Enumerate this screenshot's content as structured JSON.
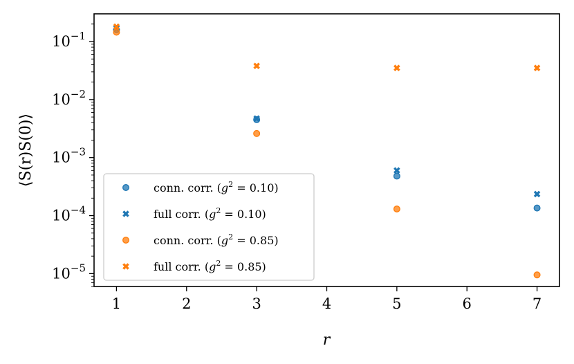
{
  "chart_data": {
    "type": "scatter",
    "title": "",
    "xlabel": "r",
    "ylabel": "⟨S(r)S(0)⟩",
    "xscale": "linear",
    "yscale": "log",
    "xlim": [
      0.68,
      7.32
    ],
    "ylim": [
      6e-06,
      0.3
    ],
    "xticks": [
      1,
      2,
      3,
      4,
      5,
      6,
      7
    ],
    "xtick_labels": [
      "1",
      "2",
      "3",
      "4",
      "5",
      "6",
      "7"
    ],
    "yticks": [
      1e-05,
      0.0001,
      0.001,
      0.01,
      0.1
    ],
    "ytick_labels": [
      {
        "base": "10",
        "exp": "−5"
      },
      {
        "base": "10",
        "exp": "−4"
      },
      {
        "base": "10",
        "exp": "−3"
      },
      {
        "base": "10",
        "exp": "−2"
      },
      {
        "base": "10",
        "exp": "−1"
      }
    ],
    "legend_position": "lower-left",
    "series": [
      {
        "name": "conn. corr. (g² = 0.10)",
        "legend_prefix": "conn. corr. (",
        "legend_g": "g",
        "legend_sup": "2",
        "legend_suffix": " = 0.10)",
        "marker": "circle",
        "color": "#1f77b4",
        "x": [
          1,
          3,
          5,
          7
        ],
        "y": [
          0.16,
          0.0045,
          0.00048,
          0.000135
        ]
      },
      {
        "name": "full corr. (g² = 0.10)",
        "legend_prefix": "full corr. (",
        "legend_g": "g",
        "legend_sup": "2",
        "legend_suffix": " = 0.10)",
        "marker": "x",
        "color": "#1f77b4",
        "x": [
          1,
          3,
          5,
          7
        ],
        "y": [
          0.17,
          0.0047,
          0.0006,
          0.000235
        ]
      },
      {
        "name": "conn. corr. (g² = 0.85)",
        "legend_prefix": "conn. corr. (",
        "legend_g": "g",
        "legend_sup": "2",
        "legend_suffix": " = 0.85)",
        "marker": "circle",
        "color": "#ff7f0e",
        "x": [
          1,
          3,
          5,
          7
        ],
        "y": [
          0.145,
          0.0026,
          0.00013,
          9.5e-06
        ]
      },
      {
        "name": "full corr. (g² = 0.85)",
        "legend_prefix": "full corr. (",
        "legend_g": "g",
        "legend_sup": "2",
        "legend_suffix": " = 0.85)",
        "marker": "x",
        "color": "#ff7f0e",
        "x": [
          1,
          3,
          5,
          7
        ],
        "y": [
          0.18,
          0.038,
          0.035,
          0.035
        ]
      }
    ]
  }
}
